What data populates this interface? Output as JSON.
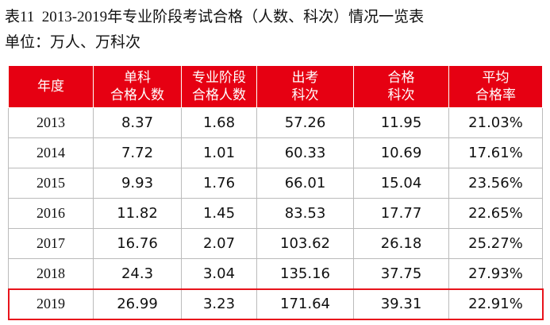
{
  "header": {
    "title": "表11  2013-2019年专业阶段考试合格（人数、科次）情况一览表",
    "unit": "单位：万人、万科次"
  },
  "table": {
    "columns": [
      [
        "年度"
      ],
      [
        "单科",
        "合格人数"
      ],
      [
        "专业阶段",
        "合格人数"
      ],
      [
        "出考",
        "科次"
      ],
      [
        "合格",
        "科次"
      ],
      [
        "平均",
        "合格率"
      ]
    ],
    "rows": [
      [
        "2013",
        "8.37",
        "1.68",
        "57.26",
        "11.95",
        "21.03%"
      ],
      [
        "2014",
        "7.72",
        "1.01",
        "60.33",
        "10.69",
        "17.61%"
      ],
      [
        "2015",
        "9.93",
        "1.76",
        "66.01",
        "15.04",
        "23.56%"
      ],
      [
        "2016",
        "11.82",
        "1.45",
        "83.53",
        "17.77",
        "22.65%"
      ],
      [
        "2017",
        "16.76",
        "2.07",
        "103.62",
        "26.18",
        "25.27%"
      ],
      [
        "2018",
        "24.3",
        "3.04",
        "135.16",
        "37.75",
        "27.93%"
      ],
      [
        "2019",
        "26.99",
        "3.23",
        "171.64",
        "39.31",
        "22.91%"
      ]
    ]
  }
}
